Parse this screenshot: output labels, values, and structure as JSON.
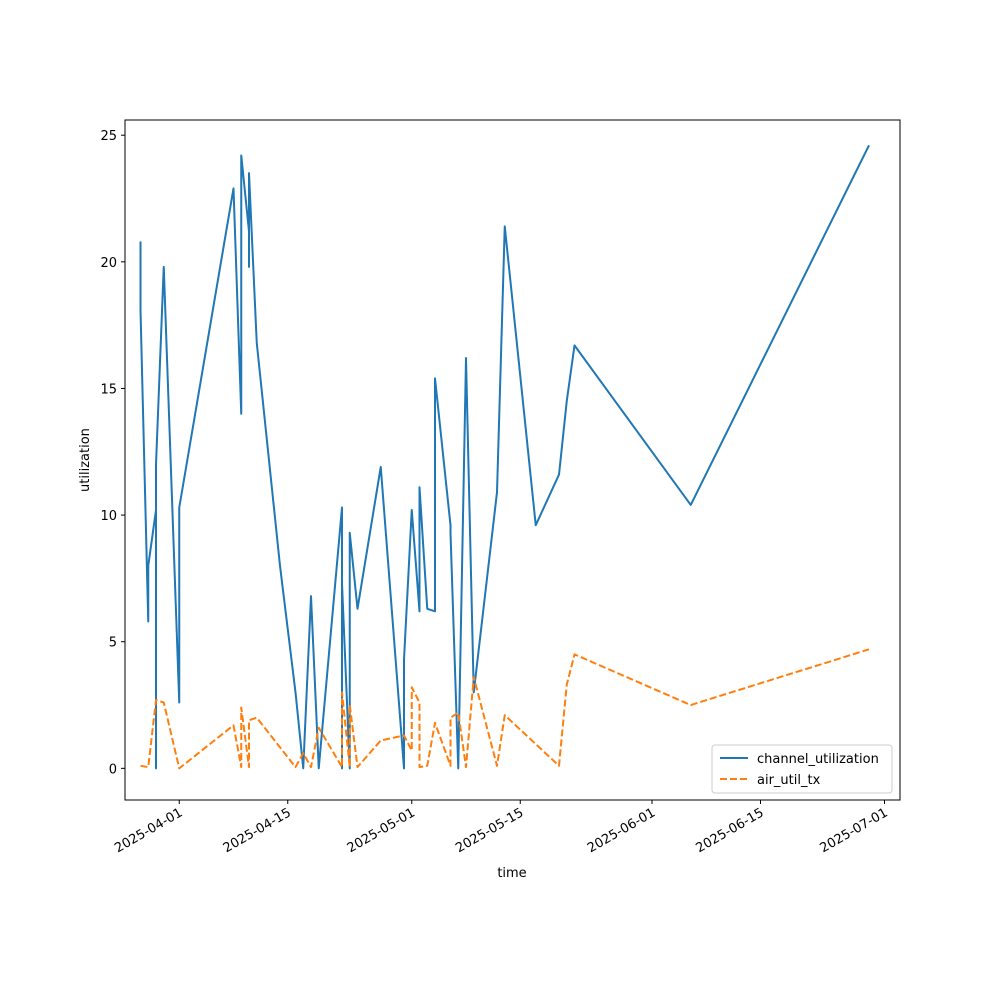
{
  "chart_data": {
    "type": "line",
    "xlabel": "time",
    "ylabel": "utilization",
    "x_axis_type": "date",
    "xlim": [
      "2025-03-25",
      "2025-07-03"
    ],
    "ylim": [
      -1.25,
      25.6
    ],
    "xticks": [
      "2025-04-01",
      "2025-04-15",
      "2025-05-01",
      "2025-05-15",
      "2025-06-01",
      "2025-06-15",
      "2025-07-01"
    ],
    "yticks": [
      0,
      5,
      10,
      15,
      20,
      25
    ],
    "grid": false,
    "legend_position": "lower-right",
    "series": [
      {
        "name": "channel_utilization",
        "color": "#1f77b4",
        "style": "solid",
        "points": [
          [
            "2025-03-27",
            20.8
          ],
          [
            "2025-03-27",
            18.1
          ],
          [
            "2025-03-28",
            5.8
          ],
          [
            "2025-03-28",
            8.0
          ],
          [
            "2025-03-29",
            10.2
          ],
          [
            "2025-03-29",
            0.0
          ],
          [
            "2025-03-29",
            12.0
          ],
          [
            "2025-03-30",
            19.8
          ],
          [
            "2025-04-01",
            2.6
          ],
          [
            "2025-04-01",
            10.3
          ],
          [
            "2025-04-08",
            22.9
          ],
          [
            "2025-04-09",
            14.0
          ],
          [
            "2025-04-09",
            24.1
          ],
          [
            "2025-04-09",
            24.2
          ],
          [
            "2025-04-10",
            21.2
          ],
          [
            "2025-04-10",
            22.0
          ],
          [
            "2025-04-10",
            19.8
          ],
          [
            "2025-04-10",
            23.5
          ],
          [
            "2025-04-11",
            16.8
          ],
          [
            "2025-04-14",
            8.0
          ],
          [
            "2025-04-16",
            3.0
          ],
          [
            "2025-04-17",
            0.0
          ],
          [
            "2025-04-18",
            6.8
          ],
          [
            "2025-04-19",
            0.0
          ],
          [
            "2025-04-22",
            10.3
          ],
          [
            "2025-04-22",
            0.0
          ],
          [
            "2025-04-22",
            7.3
          ],
          [
            "2025-04-23",
            0.0
          ],
          [
            "2025-04-23",
            9.3
          ],
          [
            "2025-04-24",
            6.3
          ],
          [
            "2025-04-27",
            11.9
          ],
          [
            "2025-04-30",
            0.0
          ],
          [
            "2025-04-30",
            4.3
          ],
          [
            "2025-05-01",
            10.2
          ],
          [
            "2025-05-02",
            6.2
          ],
          [
            "2025-05-02",
            11.1
          ],
          [
            "2025-05-03",
            6.3
          ],
          [
            "2025-05-04",
            6.2
          ],
          [
            "2025-05-04",
            15.4
          ],
          [
            "2025-05-06",
            9.6
          ],
          [
            "2025-05-06",
            9.3
          ],
          [
            "2025-05-07",
            0.0
          ],
          [
            "2025-05-08",
            16.2
          ],
          [
            "2025-05-09",
            3.0
          ],
          [
            "2025-05-12",
            10.9
          ],
          [
            "2025-05-13",
            21.4
          ],
          [
            "2025-05-17",
            9.6
          ],
          [
            "2025-05-20",
            11.6
          ],
          [
            "2025-05-21",
            14.5
          ],
          [
            "2025-05-22",
            16.7
          ],
          [
            "2025-06-06",
            10.4
          ],
          [
            "2025-06-29",
            24.6
          ]
        ]
      },
      {
        "name": "air_util_tx",
        "color": "#ff7f0e",
        "style": "dashed",
        "points": [
          [
            "2025-03-27",
            0.1
          ],
          [
            "2025-03-28",
            0.05
          ],
          [
            "2025-03-29",
            2.7
          ],
          [
            "2025-03-30",
            2.6
          ],
          [
            "2025-04-01",
            0.0
          ],
          [
            "2025-04-08",
            1.7
          ],
          [
            "2025-04-09",
            0.05
          ],
          [
            "2025-04-09",
            2.4
          ],
          [
            "2025-04-10",
            0.05
          ],
          [
            "2025-04-10",
            1.9
          ],
          [
            "2025-04-11",
            2.0
          ],
          [
            "2025-04-16",
            0.05
          ],
          [
            "2025-04-17",
            0.6
          ],
          [
            "2025-04-18",
            0.05
          ],
          [
            "2025-04-19",
            1.6
          ],
          [
            "2025-04-22",
            0.05
          ],
          [
            "2025-04-22",
            3.0
          ],
          [
            "2025-04-23",
            0.05
          ],
          [
            "2025-04-23",
            2.5
          ],
          [
            "2025-04-24",
            0.05
          ],
          [
            "2025-04-27",
            1.1
          ],
          [
            "2025-04-30",
            1.3
          ],
          [
            "2025-05-01",
            0.7
          ],
          [
            "2025-05-01",
            3.2
          ],
          [
            "2025-05-02",
            2.6
          ],
          [
            "2025-05-02",
            0.05
          ],
          [
            "2025-05-03",
            0.1
          ],
          [
            "2025-05-04",
            1.8
          ],
          [
            "2025-05-06",
            0.1
          ],
          [
            "2025-05-06",
            2.0
          ],
          [
            "2025-05-07",
            2.2
          ],
          [
            "2025-05-08",
            0.05
          ],
          [
            "2025-05-09",
            3.6
          ],
          [
            "2025-05-12",
            0.1
          ],
          [
            "2025-05-13",
            2.1
          ],
          [
            "2025-05-20",
            0.1
          ],
          [
            "2025-05-21",
            3.3
          ],
          [
            "2025-05-22",
            4.5
          ],
          [
            "2025-06-06",
            2.5
          ],
          [
            "2025-06-29",
            4.7
          ]
        ]
      }
    ]
  }
}
